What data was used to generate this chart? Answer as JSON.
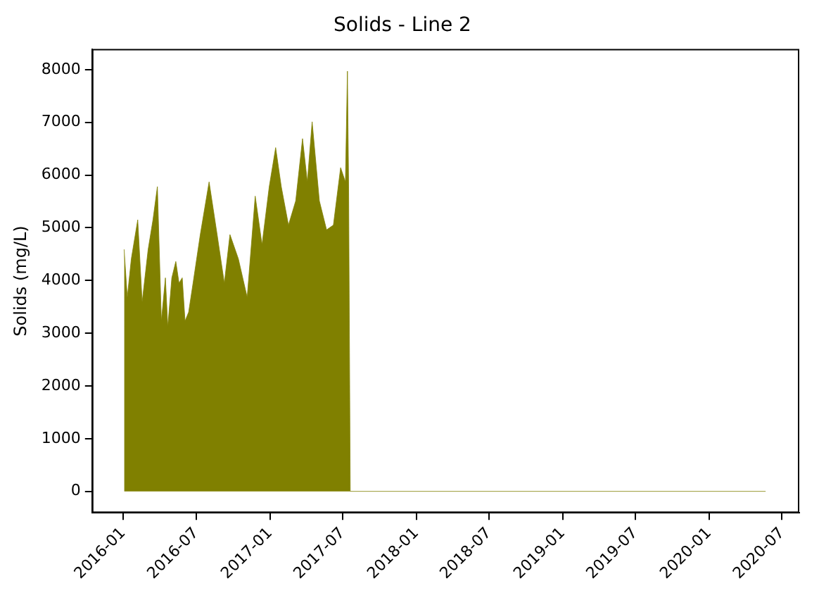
{
  "chart_data": {
    "type": "area",
    "title": "Solids - Line 2",
    "ylabel": "Solids (mg/L)",
    "x": [
      "2016-01-03",
      "2016-01-11",
      "2016-01-21",
      "2016-02-06",
      "2016-02-17",
      "2016-03-03",
      "2016-03-15",
      "2016-03-26",
      "2016-04-05",
      "2016-04-15",
      "2016-04-21",
      "2016-05-01",
      "2016-05-11",
      "2016-05-19",
      "2016-05-27",
      "2016-06-03",
      "2016-06-12",
      "2016-06-23",
      "2016-07-11",
      "2016-08-02",
      "2016-08-22",
      "2016-09-09",
      "2016-09-23",
      "2016-10-14",
      "2016-11-05",
      "2016-11-25",
      "2016-12-12",
      "2016-12-30",
      "2017-01-15",
      "2017-01-29",
      "2017-02-16",
      "2017-03-06",
      "2017-03-23",
      "2017-04-04",
      "2017-04-16",
      "2017-05-04",
      "2017-05-22",
      "2017-06-08",
      "2017-06-26",
      "2017-07-08",
      "2017-07-13",
      "2017-07-16",
      "2017-07-20",
      "2020-05-21"
    ],
    "series": [
      {
        "color": "#808000",
        "values": [
          4590,
          3680,
          4410,
          5150,
          3590,
          4590,
          5150,
          5780,
          3230,
          4050,
          3120,
          4050,
          4360,
          3950,
          4050,
          3230,
          3400,
          3950,
          4870,
          5870,
          4870,
          3950,
          4870,
          4410,
          3680,
          5600,
          4680,
          5780,
          6520,
          5780,
          5050,
          5510,
          6690,
          5870,
          7010,
          5510,
          4960,
          5050,
          6140,
          5870,
          7970,
          5780,
          0,
          0
        ]
      }
    ],
    "xlim": [
      "2015-10-15",
      "2020-08-13"
    ],
    "xticks": [
      "2016-01",
      "2016-07",
      "2017-01",
      "2017-07",
      "2018-01",
      "2018-07",
      "2019-01",
      "2019-07",
      "2020-01",
      "2020-07"
    ],
    "ylim": [
      -410,
      8390
    ],
    "yticks": [
      0,
      1000,
      2000,
      3000,
      4000,
      5000,
      6000,
      7000,
      8000
    ],
    "grid": false,
    "legend": false,
    "marker": "none"
  }
}
